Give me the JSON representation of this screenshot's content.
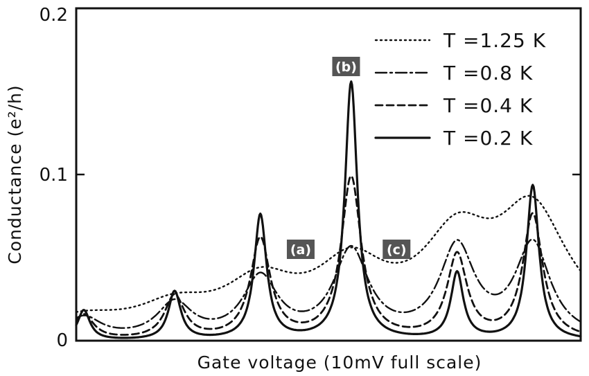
{
  "chart_data": {
    "type": "line",
    "title": "",
    "xlabel": "Gate  voltage (10mV full scale)",
    "ylabel": "Conductance (e²/h)",
    "xlim": [
      0,
      100
    ],
    "ylim": [
      0,
      0.2
    ],
    "yticks": [
      {
        "value": 0,
        "label": "0"
      },
      {
        "value": 0.1,
        "label": "0.1"
      },
      {
        "value": 0.2,
        "label": "0.2"
      }
    ],
    "grid": false,
    "legend_position": "top-right",
    "colors": {
      "line": "#111111",
      "marker_bg": "#555555"
    },
    "series": [
      {
        "name": "T =1.25 K",
        "style": "dotted",
        "peaks": [
          {
            "x": 1.5,
            "y": 0.012
          },
          {
            "x": 19.5,
            "y": 0.018
          },
          {
            "x": 36.5,
            "y": 0.031
          },
          {
            "x": 54.5,
            "y": 0.04
          },
          {
            "x": 75.5,
            "y": 0.054
          },
          {
            "x": 90.5,
            "y": 0.072
          }
        ],
        "width": 8.5,
        "baseline": 0.005
      },
      {
        "name": "T =0.8 K",
        "style": "dashdot",
        "peaks": [
          {
            "x": 1.5,
            "y": 0.013
          },
          {
            "x": 19.5,
            "y": 0.021
          },
          {
            "x": 36.5,
            "y": 0.036
          },
          {
            "x": 54.5,
            "y": 0.052
          },
          {
            "x": 75.5,
            "y": 0.054
          },
          {
            "x": 90.5,
            "y": 0.056
          }
        ],
        "width": 4.2,
        "baseline": 0.0
      },
      {
        "name": "T =0.4 K",
        "style": "dashed",
        "peaks": [
          {
            "x": 1.5,
            "y": 0.015
          },
          {
            "x": 19.5,
            "y": 0.026
          },
          {
            "x": 36.5,
            "y": 0.06
          },
          {
            "x": 54.5,
            "y": 0.097
          },
          {
            "x": 75.5,
            "y": 0.05
          },
          {
            "x": 90.5,
            "y": 0.075
          }
        ],
        "width": 2.4,
        "baseline": 0.0
      },
      {
        "name": "T =0.2 K",
        "style": "solid",
        "peaks": [
          {
            "x": 1.5,
            "y": 0.018
          },
          {
            "x": 19.5,
            "y": 0.029
          },
          {
            "x": 36.5,
            "y": 0.075
          },
          {
            "x": 54.5,
            "y": 0.155
          },
          {
            "x": 75.5,
            "y": 0.04
          },
          {
            "x": 90.5,
            "y": 0.093
          }
        ],
        "width": 1.5,
        "baseline": 0.0
      }
    ],
    "markers": [
      {
        "label": "(a)",
        "x": 44.5,
        "y": 0.055
      },
      {
        "label": "(b)",
        "x": 53.5,
        "y": 0.165
      },
      {
        "label": "(c)",
        "x": 63.5,
        "y": 0.055
      }
    ]
  }
}
